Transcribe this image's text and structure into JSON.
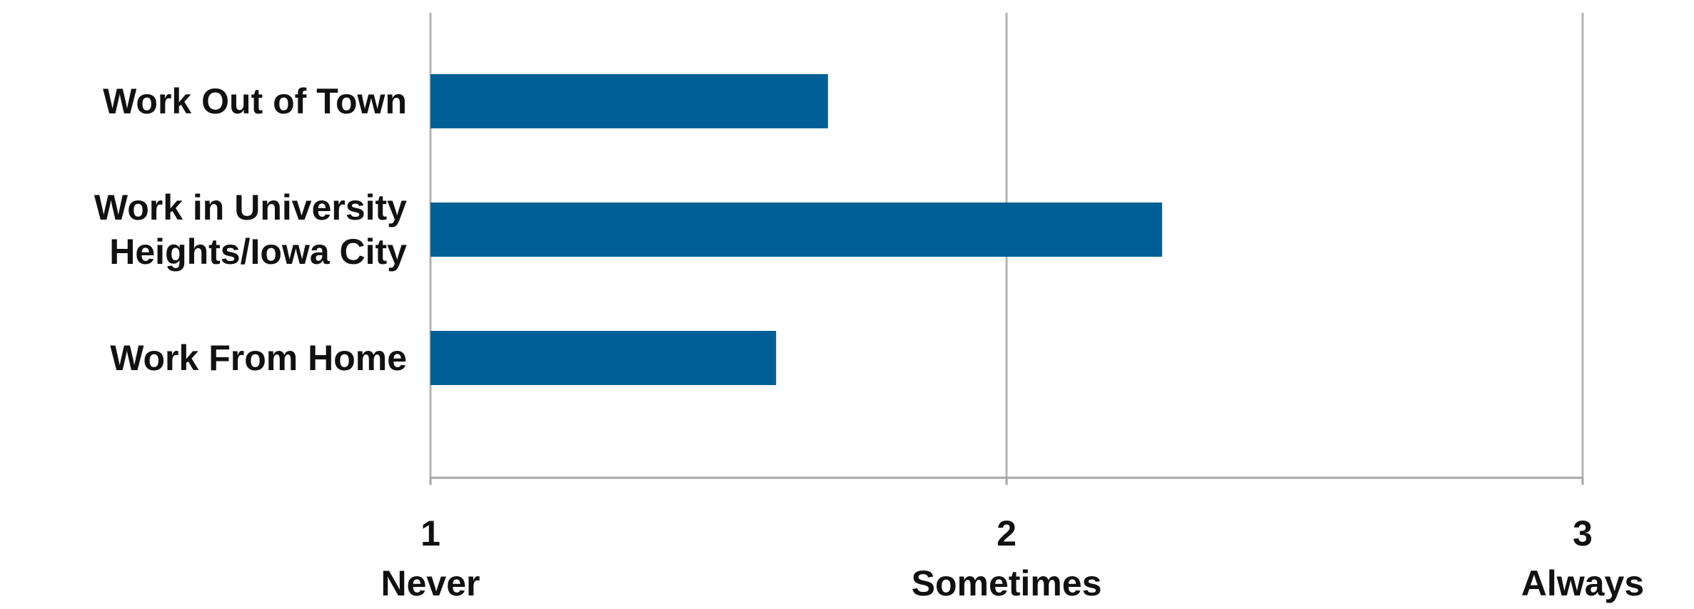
{
  "chart_data": {
    "type": "bar",
    "orientation": "horizontal",
    "categories": [
      [
        "Work Out of Town"
      ],
      [
        "Work in University",
        "Heights/Iowa City"
      ],
      [
        "Work From Home"
      ]
    ],
    "values": [
      1.69,
      2.27,
      1.6
    ],
    "xlim": [
      1,
      3
    ],
    "xticks": [
      {
        "value": 1,
        "number": "1",
        "word": "Never"
      },
      {
        "value": 2,
        "number": "2",
        "word": "Sometimes"
      },
      {
        "value": 3,
        "number": "3",
        "word": "Always"
      }
    ],
    "grid": "vertical",
    "legend": "none",
    "colors": {
      "bar": "#005f94",
      "grid": "#b3b3b3",
      "axis": "#a6a6a6",
      "text": "#111111"
    },
    "title": "",
    "xlabel": "",
    "ylabel": ""
  }
}
